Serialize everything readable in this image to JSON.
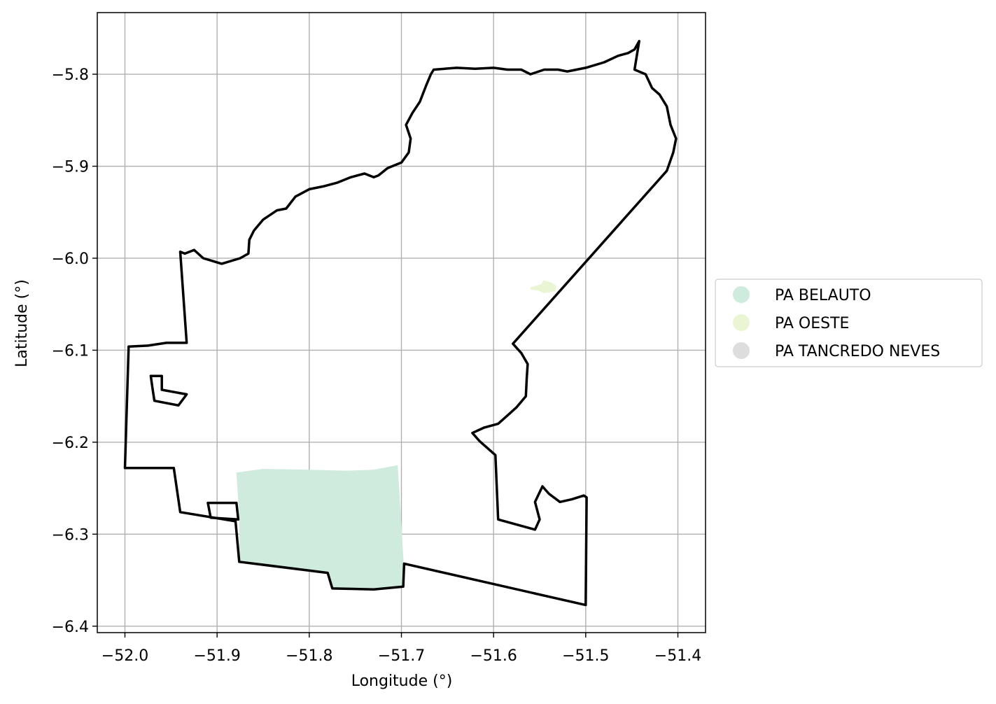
{
  "chart_data": {
    "type": "map",
    "xlabel": "Longitude (°)",
    "ylabel": "Latitude (°)",
    "xlim": [
      -52.03,
      -51.37
    ],
    "ylim": [
      -6.407,
      -5.733
    ],
    "grid": true,
    "legend_placement": "center-right outside",
    "x_ticks": [
      {
        "value": -52.0,
        "label": "−52.0"
      },
      {
        "value": -51.9,
        "label": "−51.9"
      },
      {
        "value": -51.8,
        "label": "−51.8"
      },
      {
        "value": -51.7,
        "label": "−51.7"
      },
      {
        "value": -51.6,
        "label": "−51.6"
      },
      {
        "value": -51.5,
        "label": "−51.5"
      },
      {
        "value": -51.4,
        "label": "−51.4"
      }
    ],
    "y_ticks": [
      {
        "value": -5.8,
        "label": "−5.8"
      },
      {
        "value": -5.9,
        "label": "−5.9"
      },
      {
        "value": -6.0,
        "label": "−6.0"
      },
      {
        "value": -6.1,
        "label": "−6.1"
      },
      {
        "value": -6.2,
        "label": "−6.2"
      },
      {
        "value": -6.3,
        "label": "−6.3"
      },
      {
        "value": -6.4,
        "label": "−6.4"
      }
    ],
    "legend": [
      {
        "name": "PA BELAUTO",
        "color": "#cfebde"
      },
      {
        "name": "PA OESTE",
        "color": "#eaf6d3"
      },
      {
        "name": "PA TANCREDO NEVES",
        "color": "#dddddd"
      }
    ],
    "areas": [
      {
        "name": "PA BELAUTO",
        "color": "#cfebde",
        "lonlat": [
          [
            -51.879,
            -6.233
          ],
          [
            -51.85,
            -6.229
          ],
          [
            -51.8,
            -6.23
          ],
          [
            -51.76,
            -6.231
          ],
          [
            -51.73,
            -6.23
          ],
          [
            -51.704,
            -6.225
          ],
          [
            -51.7,
            -6.29
          ],
          [
            -51.697,
            -6.34
          ],
          [
            -51.698,
            -6.357
          ],
          [
            -51.73,
            -6.359
          ],
          [
            -51.775,
            -6.359
          ],
          [
            -51.78,
            -6.342
          ],
          [
            -51.876,
            -6.33
          ],
          [
            -51.876,
            -6.28
          ],
          [
            -51.879,
            -6.233
          ]
        ]
      },
      {
        "name": "PA OESTE",
        "color": "#eaf6d3",
        "lonlat": [
          [
            -51.56,
            -6.032
          ],
          [
            -51.548,
            -6.028
          ],
          [
            -51.546,
            -6.024
          ],
          [
            -51.538,
            -6.026
          ],
          [
            -51.532,
            -6.03
          ],
          [
            -51.533,
            -6.036
          ],
          [
            -51.545,
            -6.038
          ],
          [
            -51.552,
            -6.035
          ],
          [
            -51.56,
            -6.034
          ]
        ]
      }
    ],
    "boundaries": [
      {
        "name": "outer",
        "lonlat": [
          [
            -51.442,
            -5.764
          ],
          [
            -51.447,
            -5.773
          ],
          [
            -51.454,
            -5.777
          ],
          [
            -51.465,
            -5.78
          ],
          [
            -51.48,
            -5.787
          ],
          [
            -51.5,
            -5.793
          ],
          [
            -51.52,
            -5.797
          ],
          [
            -51.53,
            -5.795
          ],
          [
            -51.545,
            -5.795
          ],
          [
            -51.56,
            -5.8
          ],
          [
            -51.57,
            -5.795
          ],
          [
            -51.585,
            -5.795
          ],
          [
            -51.6,
            -5.793
          ],
          [
            -51.62,
            -5.794
          ],
          [
            -51.64,
            -5.793
          ],
          [
            -51.665,
            -5.795
          ],
          [
            -51.668,
            -5.8
          ],
          [
            -51.673,
            -5.812
          ],
          [
            -51.68,
            -5.83
          ],
          [
            -51.688,
            -5.842
          ],
          [
            -51.695,
            -5.855
          ],
          [
            -51.69,
            -5.87
          ],
          [
            -51.692,
            -5.885
          ],
          [
            -51.7,
            -5.896
          ],
          [
            -51.715,
            -5.902
          ],
          [
            -51.725,
            -5.91
          ],
          [
            -51.73,
            -5.912
          ],
          [
            -51.74,
            -5.908
          ],
          [
            -51.755,
            -5.912
          ],
          [
            -51.77,
            -5.918
          ],
          [
            -51.785,
            -5.922
          ],
          [
            -51.8,
            -5.925
          ],
          [
            -51.815,
            -5.933
          ],
          [
            -51.825,
            -5.946
          ],
          [
            -51.835,
            -5.948
          ],
          [
            -51.85,
            -5.958
          ],
          [
            -51.86,
            -5.97
          ],
          [
            -51.865,
            -5.98
          ],
          [
            -51.866,
            -5.995
          ],
          [
            -51.875,
            -6.0
          ],
          [
            -51.895,
            -6.006
          ],
          [
            -51.905,
            -6.003
          ],
          [
            -51.915,
            -6.0
          ],
          [
            -51.925,
            -5.991
          ],
          [
            -51.935,
            -5.995
          ],
          [
            -51.94,
            -5.993
          ],
          [
            -51.933,
            -6.092
          ],
          [
            -51.955,
            -6.092
          ],
          [
            -51.975,
            -6.095
          ],
          [
            -51.996,
            -6.096
          ],
          [
            -52.0,
            -6.228
          ],
          [
            -51.947,
            -6.228
          ],
          [
            -51.94,
            -6.276
          ],
          [
            -51.88,
            -6.286
          ],
          [
            -51.876,
            -6.33
          ],
          [
            -51.78,
            -6.342
          ],
          [
            -51.775,
            -6.359
          ],
          [
            -51.73,
            -6.36
          ],
          [
            -51.698,
            -6.357
          ],
          [
            -51.697,
            -6.332
          ],
          [
            -51.5,
            -6.377
          ],
          [
            -51.499,
            -6.26
          ],
          [
            -51.502,
            -6.258
          ],
          [
            -51.515,
            -6.262
          ],
          [
            -51.528,
            -6.265
          ],
          [
            -51.54,
            -6.256
          ],
          [
            -51.547,
            -6.248
          ],
          [
            -51.555,
            -6.265
          ],
          [
            -51.55,
            -6.284
          ],
          [
            -51.555,
            -6.295
          ],
          [
            -51.595,
            -6.284
          ],
          [
            -51.598,
            -6.214
          ],
          [
            -51.615,
            -6.199
          ],
          [
            -51.623,
            -6.19
          ],
          [
            -51.61,
            -6.184
          ],
          [
            -51.595,
            -6.18
          ],
          [
            -51.585,
            -6.171
          ],
          [
            -51.575,
            -6.162
          ],
          [
            -51.565,
            -6.15
          ],
          [
            -51.564,
            -6.13
          ],
          [
            -51.563,
            -6.115
          ],
          [
            -51.57,
            -6.103
          ],
          [
            -51.579,
            -6.093
          ],
          [
            -51.412,
            -5.905
          ],
          [
            -51.405,
            -5.885
          ],
          [
            -51.402,
            -5.87
          ],
          [
            -51.408,
            -5.855
          ],
          [
            -51.412,
            -5.835
          ],
          [
            -51.42,
            -5.822
          ],
          [
            -51.428,
            -5.815
          ],
          [
            -51.435,
            -5.8
          ],
          [
            -51.447,
            -5.795
          ],
          [
            -51.442,
            -5.764
          ]
        ]
      },
      {
        "name": "hole-small-left",
        "lonlat": [
          [
            -51.972,
            -6.128
          ],
          [
            -51.96,
            -6.128
          ],
          [
            -51.96,
            -6.143
          ],
          [
            -51.933,
            -6.148
          ],
          [
            -51.942,
            -6.16
          ],
          [
            -51.968,
            -6.155
          ],
          [
            -51.97,
            -6.142
          ],
          [
            -51.972,
            -6.128
          ]
        ]
      },
      {
        "name": "hole-rect",
        "lonlat": [
          [
            -51.91,
            -6.266
          ],
          [
            -51.879,
            -6.266
          ],
          [
            -51.877,
            -6.284
          ],
          [
            -51.907,
            -6.282
          ],
          [
            -51.91,
            -6.266
          ]
        ]
      }
    ]
  }
}
